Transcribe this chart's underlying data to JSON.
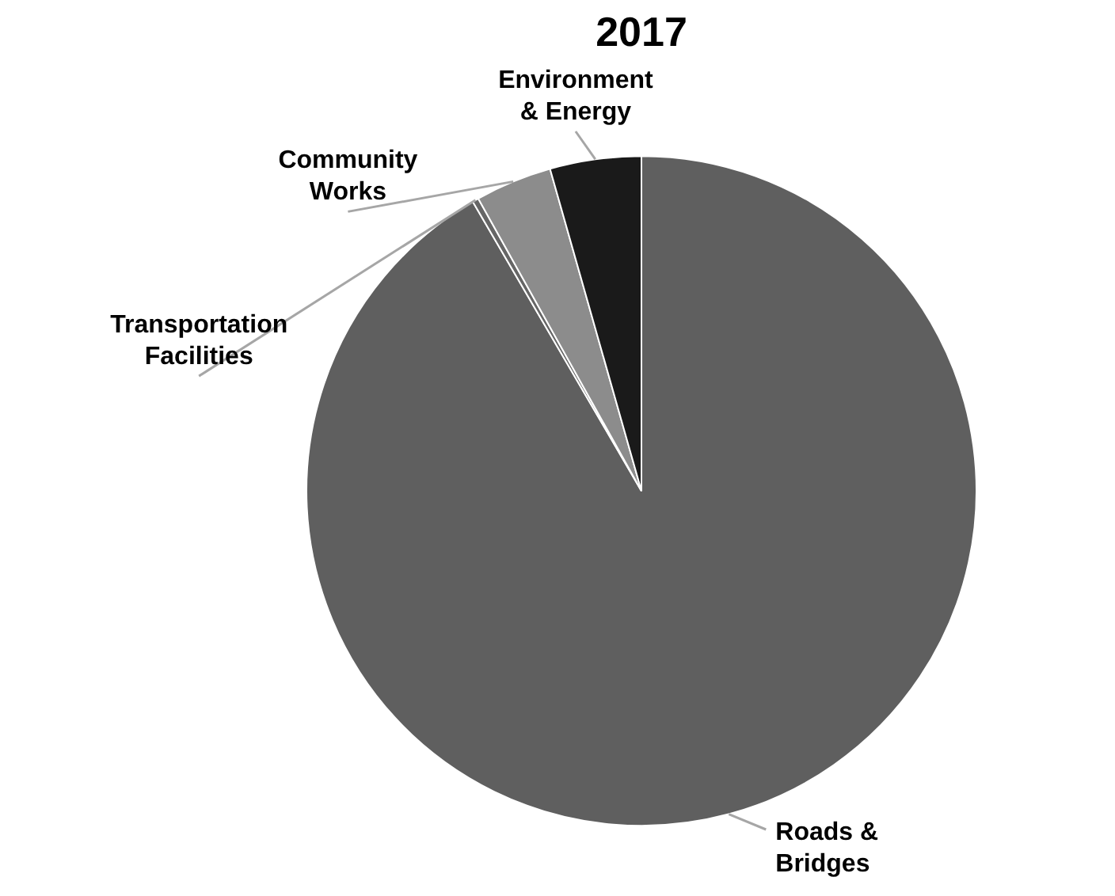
{
  "chart_data": {
    "type": "pie",
    "title": "2017",
    "categories": [
      "Roads &\nBridges",
      "Transportation\nFacilities",
      "Community\nWorks",
      "Environment\n& Energy"
    ],
    "values": [
      91.6,
      0.3,
      3.7,
      4.4
    ],
    "colors": [
      "#5f5f5f",
      "#666666",
      "#8c8c8c",
      "#1a1a1a"
    ],
    "legend": false
  }
}
